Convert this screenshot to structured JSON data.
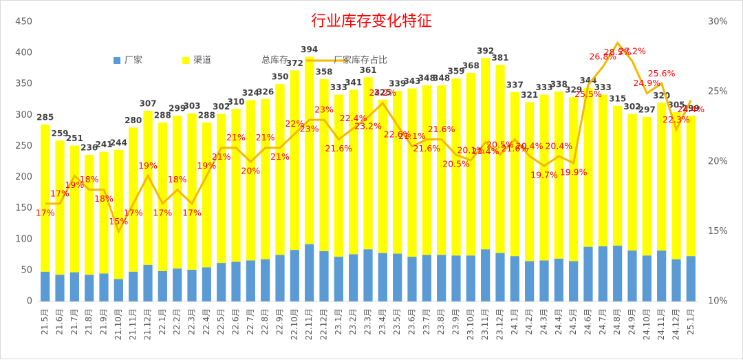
{
  "chart_data": {
    "type": "bar",
    "stacked": true,
    "title": "行业库存变化特征",
    "categories": [
      "21.5月",
      "21.6月",
      "21.7月",
      "21.8月",
      "21.9月",
      "21.10月",
      "21.11月",
      "21.12月",
      "22.1月",
      "22.2月",
      "22.3月",
      "22.4月",
      "22.5月",
      "22.6月",
      "22.7月",
      "22.8月",
      "22.9月",
      "22.10月",
      "22.11月",
      "22.12月",
      "23.1月",
      "23.2月",
      "23.3月",
      "23.4月",
      "23.5月",
      "23.6月",
      "23.7月",
      "23.8月",
      "23.9月",
      "23.10月",
      "23.11月",
      "23.12月",
      "24.1月",
      "24.2月",
      "24.3月",
      "24.4月",
      "24.5月",
      "24.6月",
      "24.7月",
      "24.8月",
      "24.9月",
      "24.10月",
      "24.11月",
      "24.12月",
      "25.1月"
    ],
    "series": [
      {
        "name": "厂家",
        "type": "bar",
        "color": "#5b9bd5",
        "values": [
          48,
          43,
          47,
          43,
          45,
          36,
          48,
          59,
          49,
          53,
          51,
          55,
          62,
          64,
          66,
          68,
          75,
          83,
          92,
          81,
          72,
          76,
          84,
          78,
          77,
          72,
          75,
          75,
          74,
          74,
          84,
          78,
          73,
          65,
          66,
          69,
          65,
          88,
          89,
          90,
          82,
          74,
          82,
          68,
          73
        ]
      },
      {
        "name": "渠道",
        "type": "bar",
        "color": "#ffff00",
        "values": [
          237,
          216,
          204,
          193,
          196,
          208,
          232,
          248,
          239,
          246,
          252,
          233,
          240,
          246,
          258,
          258,
          275,
          289,
          302,
          277,
          261,
          265,
          277,
          247,
          262,
          271,
          273,
          273,
          285,
          294,
          308,
          303,
          264,
          256,
          267,
          269,
          264,
          256,
          244,
          225,
          220,
          223,
          238,
          237,
          226
        ]
      },
      {
        "name": "总库存",
        "type": "label",
        "color": "#404040",
        "values": [
          285,
          259,
          251,
          236,
          241,
          244,
          280,
          307,
          288,
          299,
          303,
          288,
          302,
          310,
          324,
          326,
          350,
          372,
          394,
          358,
          333,
          341,
          361,
          325,
          339,
          343,
          348,
          348,
          359,
          368,
          392,
          381,
          337,
          321,
          333,
          338,
          329,
          344,
          333,
          315,
          302,
          297,
          320,
          305,
          299
        ]
      },
      {
        "name": "厂家库存占比",
        "type": "line",
        "axis": "y2",
        "color": "#f5b800",
        "label_color": "#ff0000",
        "values": [
          17,
          17,
          19,
          18,
          18,
          15,
          17,
          19,
          17,
          18,
          17,
          19,
          21,
          21,
          20,
          21,
          21,
          22,
          23,
          23,
          21.6,
          22.4,
          23.2,
          24.2,
          22.6,
          21.1,
          21.6,
          21.6,
          20.5,
          20.1,
          21.4,
          20.5,
          21.6,
          20.4,
          19.7,
          20.4,
          19.9,
          25.5,
          26.8,
          28.5,
          27.2,
          24.9,
          25.6,
          22.3,
          24.4
        ],
        "value_labels": [
          "17%",
          "17%",
          "19%",
          "18%",
          "18%",
          "15%",
          "17%",
          "19%",
          "17%",
          "18%",
          "17%",
          "19%",
          "21%",
          "21%",
          "20%",
          "21%",
          "21%",
          "22%",
          "23%",
          "23%",
          "21.6%",
          "22.4%",
          "23.2%",
          "24.2%",
          "22.6%",
          "21.1%",
          "21.6%",
          "21.6%",
          "20.5%",
          "20.1%",
          "21.4%",
          "20.5%",
          "21.6%",
          "20.4%",
          "19.7%",
          "20.4%",
          "19.9%",
          "25.5%",
          "26.8%",
          "28.5%",
          "27.2%",
          "24.9%",
          "25.6%",
          "22.3%",
          "24.4%"
        ]
      }
    ],
    "ylim": [
      0,
      450
    ],
    "yticks": [
      0,
      50,
      100,
      150,
      200,
      250,
      300,
      350,
      400,
      450
    ],
    "y2lim": [
      10,
      30
    ],
    "y2ticks": [
      {
        "value": 10,
        "label": "10%"
      },
      {
        "value": 15,
        "label": "15%"
      },
      {
        "value": 20,
        "label": "20%"
      },
      {
        "value": 25,
        "label": "25%"
      },
      {
        "value": 30,
        "label": "30%"
      }
    ],
    "grid": false
  }
}
